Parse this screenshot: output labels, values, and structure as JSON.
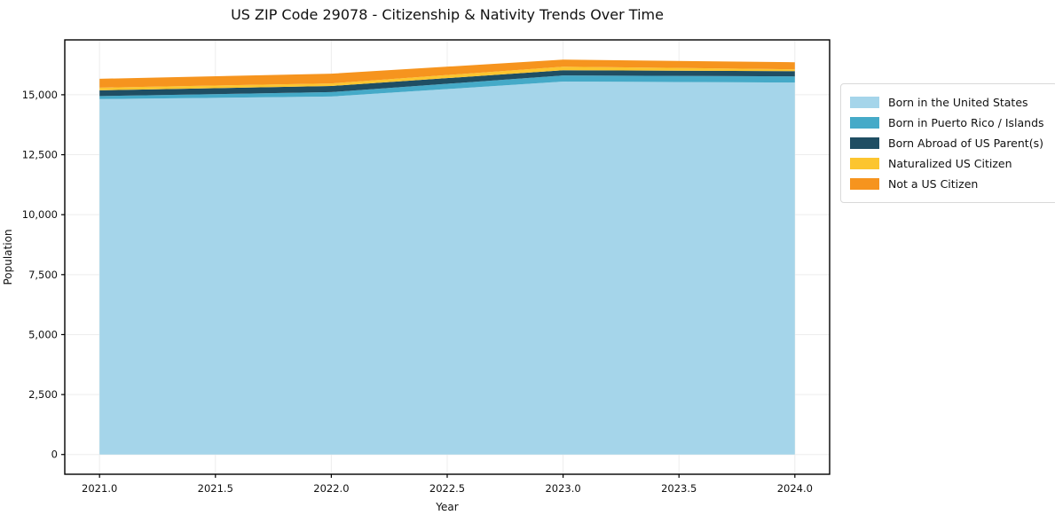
{
  "title": "US ZIP Code 29078 - Citizenship & Nativity Trends Over Time",
  "chart_data": {
    "type": "area",
    "stacked": true,
    "title": "US ZIP Code 29078 - Citizenship & Nativity Trends Over Time",
    "xlabel": "Year",
    "ylabel": "Population",
    "x": [
      2021,
      2022,
      2023,
      2024
    ],
    "series": [
      {
        "name": "Born in the United States",
        "color": "#a5d5ea",
        "values": [
          14820,
          14925,
          15550,
          15510
        ]
      },
      {
        "name": "Born in Puerto Rico / Islands",
        "color": "#45aac8",
        "values": [
          125,
          185,
          255,
          255
        ]
      },
      {
        "name": "Born Abroad of US Parent(s)",
        "color": "#1f4e63",
        "values": [
          240,
          255,
          220,
          220
        ]
      },
      {
        "name": "Naturalized US Citizen",
        "color": "#fcc52f",
        "values": [
          110,
          110,
          145,
          75
        ]
      },
      {
        "name": "Not a US Citizen",
        "color": "#f6941e",
        "values": [
          370,
          405,
          295,
          295
        ]
      }
    ],
    "x_ticks": {
      "values": [
        2021.0,
        2021.5,
        2022.0,
        2022.5,
        2023.0,
        2023.5,
        2024.0
      ],
      "labels": [
        "2021.0",
        "2021.5",
        "2022.0",
        "2022.5",
        "2023.0",
        "2023.5",
        "2024.0"
      ]
    },
    "y_ticks": {
      "values": [
        0,
        2500,
        5000,
        7500,
        10000,
        12500,
        15000
      ],
      "labels": [
        "0",
        "2,500",
        "5,000",
        "7,500",
        "10,000",
        "12,500",
        "15,000"
      ]
    },
    "xlim": [
      2020.85,
      2024.15
    ],
    "ylim": [
      -823,
      17288
    ],
    "grid": true,
    "grid_color": "#ededed",
    "spine_color": "#000000",
    "legend_position": "right"
  }
}
